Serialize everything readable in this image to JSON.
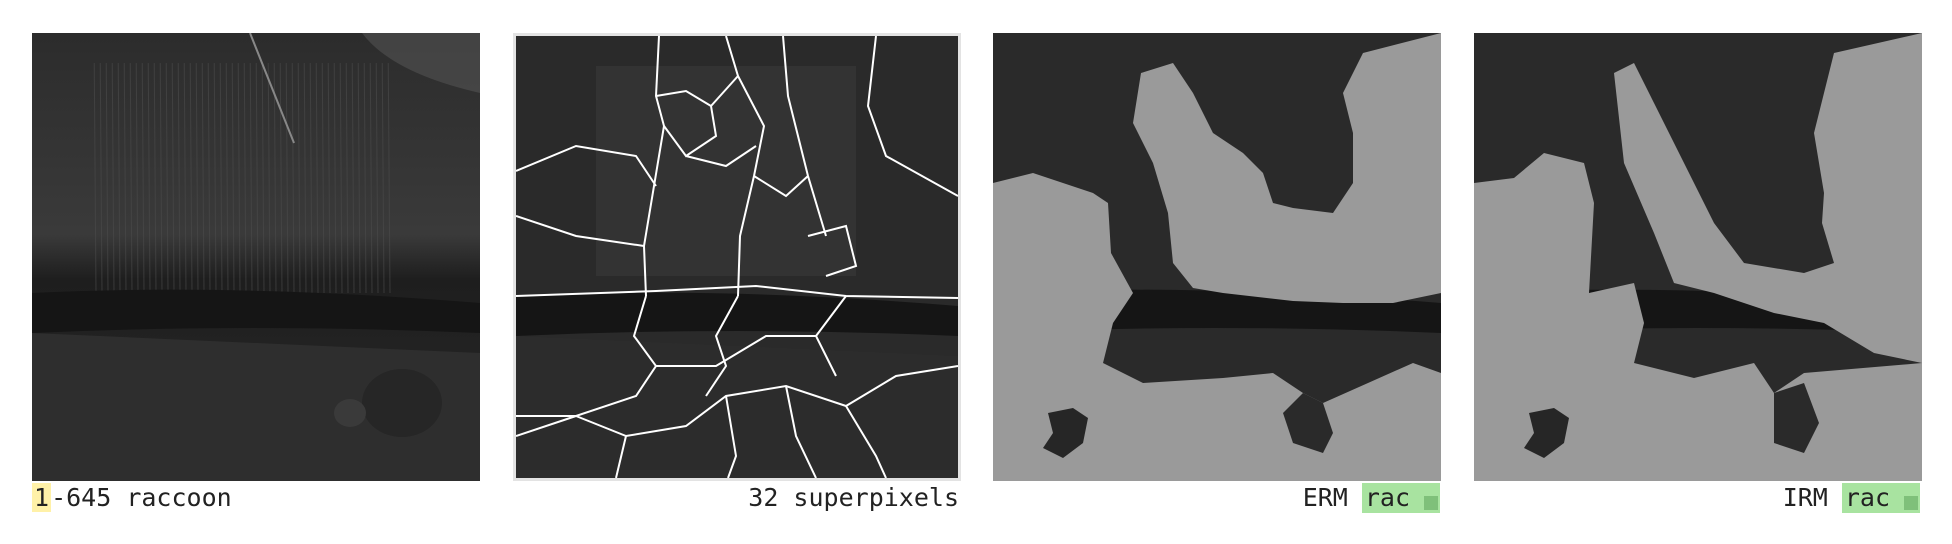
{
  "panels": [
    {
      "id": "original",
      "caption_number": "1",
      "caption_text": "-645 raccoon"
    },
    {
      "id": "superpixels",
      "caption_text": "32 superpixels"
    },
    {
      "id": "erm",
      "method_label": "ERM",
      "prediction_label": "rac"
    },
    {
      "id": "irm",
      "method_label": "IRM",
      "prediction_label": "rac"
    }
  ],
  "colors": {
    "highlight": "#fff1a8",
    "prediction_tag": "#a8e3a0",
    "mask_gray": "#9a9a9a",
    "boundary": "#ffffff"
  }
}
